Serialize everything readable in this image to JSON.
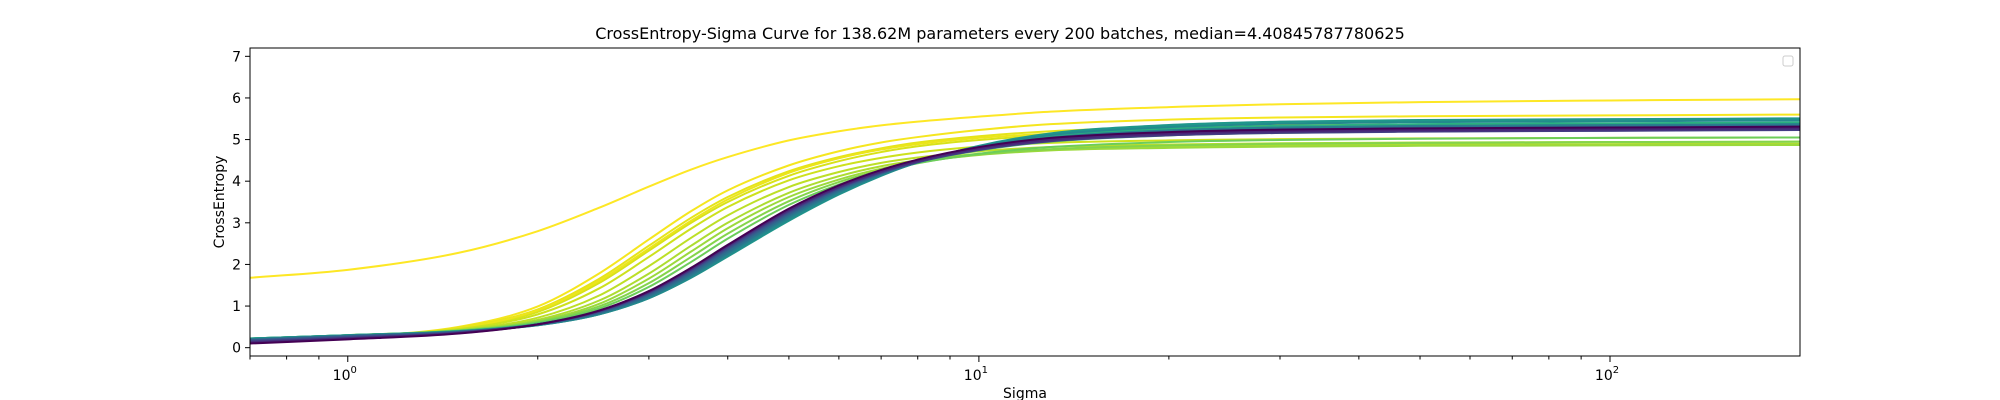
{
  "chart_data": {
    "type": "line",
    "title": "CrossEntropy-Sigma Curve for 138.62M parameters every 200 batches, median=4.40845787780625",
    "xlabel": "Sigma",
    "ylabel": "CrossEntropy",
    "xscale": "log",
    "xlim": [
      0.7,
      200
    ],
    "ylim": [
      -0.2,
      7.2
    ],
    "xticks": [
      {
        "value": 1,
        "base": "10",
        "exp": "0"
      },
      {
        "value": 10,
        "base": "10",
        "exp": "1"
      },
      {
        "value": 100,
        "base": "10",
        "exp": "2"
      }
    ],
    "yticks": [
      {
        "value": 0,
        "label": "0"
      },
      {
        "value": 1,
        "label": "1"
      },
      {
        "value": 2,
        "label": "2"
      },
      {
        "value": 3,
        "label": "3"
      },
      {
        "value": 4,
        "label": "4"
      },
      {
        "value": 5,
        "label": "5"
      },
      {
        "value": 6,
        "label": "6"
      },
      {
        "value": 7,
        "label": "7"
      }
    ],
    "grid": false,
    "legend": "top-right",
    "x": [
      0.7,
      1,
      1.5,
      2,
      2.5,
      3,
      3.5,
      4,
      5,
      6,
      7,
      8,
      10,
      13,
      20,
      30,
      50,
      100,
      200
    ],
    "series": [
      {
        "color": "#fde725",
        "values": [
          1.68,
          1.87,
          2.28,
          2.8,
          3.36,
          3.87,
          4.28,
          4.58,
          4.98,
          5.2,
          5.34,
          5.43,
          5.55,
          5.67,
          5.78,
          5.85,
          5.9,
          5.94,
          5.97
        ]
      },
      {
        "color": "#f5e61f",
        "values": [
          0.15,
          0.26,
          0.5,
          0.99,
          1.78,
          2.6,
          3.28,
          3.78,
          4.38,
          4.72,
          4.93,
          5.06,
          5.23,
          5.37,
          5.48,
          5.53,
          5.56,
          5.58,
          5.6
        ]
      },
      {
        "color": "#e5e419",
        "values": [
          0.16,
          0.26,
          0.48,
          0.92,
          1.65,
          2.45,
          3.12,
          3.62,
          4.24,
          4.58,
          4.79,
          4.93,
          5.08,
          5.2,
          5.3,
          5.34,
          5.36,
          5.38,
          5.4
        ]
      },
      {
        "color": "#d8e219",
        "values": [
          0.17,
          0.27,
          0.46,
          0.86,
          1.55,
          2.33,
          3.0,
          3.5,
          4.13,
          4.48,
          4.7,
          4.84,
          4.99,
          5.1,
          5.18,
          5.22,
          5.24,
          5.26,
          5.28
        ]
      },
      {
        "color": "#ece51b",
        "values": [
          0.15,
          0.25,
          0.47,
          0.9,
          1.6,
          2.38,
          3.05,
          3.56,
          4.2,
          4.55,
          4.76,
          4.89,
          5.04,
          5.14,
          5.22,
          5.26,
          5.28,
          5.3,
          5.32
        ]
      },
      {
        "color": "#cde11d",
        "values": [
          0.18,
          0.28,
          0.45,
          0.8,
          1.42,
          2.18,
          2.86,
          3.38,
          4.02,
          4.36,
          4.56,
          4.69,
          4.83,
          4.92,
          4.98,
          5.01,
          5.03,
          5.04,
          5.05
        ]
      },
      {
        "color": "#bddf26",
        "values": [
          0.19,
          0.28,
          0.43,
          0.72,
          1.25,
          1.96,
          2.64,
          3.18,
          3.86,
          4.22,
          4.44,
          4.57,
          4.72,
          4.82,
          4.88,
          4.91,
          4.93,
          4.94,
          4.95
        ]
      },
      {
        "color": "#addc30",
        "values": [
          0.2,
          0.29,
          0.42,
          0.67,
          1.13,
          1.78,
          2.45,
          3.0,
          3.72,
          4.12,
          4.36,
          4.5,
          4.66,
          4.76,
          4.83,
          4.86,
          4.88,
          4.89,
          4.9
        ]
      },
      {
        "color": "#9bd93c",
        "values": [
          0.2,
          0.29,
          0.42,
          0.64,
          1.05,
          1.66,
          2.31,
          2.87,
          3.62,
          4.04,
          4.3,
          4.46,
          4.63,
          4.74,
          4.8,
          4.83,
          4.85,
          4.86,
          4.87
        ]
      },
      {
        "color": "#84d44b",
        "values": [
          0.21,
          0.3,
          0.41,
          0.62,
          0.99,
          1.55,
          2.18,
          2.74,
          3.52,
          3.98,
          4.26,
          4.44,
          4.64,
          4.77,
          4.86,
          4.9,
          4.92,
          4.94,
          4.95
        ]
      },
      {
        "color": "#6ccd5a",
        "values": [
          0.21,
          0.3,
          0.41,
          0.6,
          0.94,
          1.46,
          2.06,
          2.62,
          3.43,
          3.92,
          4.23,
          4.43,
          4.66,
          4.82,
          4.94,
          4.99,
          5.02,
          5.04,
          5.05
        ]
      },
      {
        "color": "#52c569",
        "values": [
          0.22,
          0.3,
          0.4,
          0.58,
          0.89,
          1.36,
          1.92,
          2.47,
          3.3,
          3.84,
          4.2,
          4.45,
          4.74,
          4.95,
          5.1,
          5.16,
          5.2,
          5.22,
          5.24
        ]
      },
      {
        "color": "#3aba76",
        "values": [
          0.22,
          0.3,
          0.4,
          0.57,
          0.86,
          1.3,
          1.83,
          2.37,
          3.22,
          3.8,
          4.19,
          4.46,
          4.78,
          5.02,
          5.18,
          5.25,
          5.29,
          5.31,
          5.33
        ]
      },
      {
        "color": "#2ab07f",
        "values": [
          0.22,
          0.3,
          0.4,
          0.56,
          0.84,
          1.26,
          1.78,
          2.31,
          3.17,
          3.77,
          4.18,
          4.47,
          4.82,
          5.08,
          5.26,
          5.33,
          5.37,
          5.39,
          5.41
        ]
      },
      {
        "color": "#20a486",
        "values": [
          0.22,
          0.3,
          0.39,
          0.55,
          0.82,
          1.22,
          1.72,
          2.24,
          3.1,
          3.72,
          4.15,
          4.46,
          4.84,
          5.12,
          5.31,
          5.39,
          5.43,
          5.45,
          5.47
        ]
      },
      {
        "color": "#1f978b",
        "values": [
          0.22,
          0.3,
          0.39,
          0.54,
          0.8,
          1.19,
          1.68,
          2.19,
          3.05,
          3.68,
          4.13,
          4.45,
          4.85,
          5.15,
          5.35,
          5.43,
          5.47,
          5.49,
          5.51
        ]
      },
      {
        "color": "#238a8d",
        "values": [
          0.21,
          0.29,
          0.39,
          0.54,
          0.8,
          1.19,
          1.69,
          2.21,
          3.08,
          3.7,
          4.14,
          4.45,
          4.83,
          5.11,
          5.3,
          5.38,
          5.42,
          5.44,
          5.46
        ]
      },
      {
        "color": "#287d8e",
        "values": [
          0.2,
          0.29,
          0.39,
          0.55,
          0.82,
          1.22,
          1.73,
          2.26,
          3.13,
          3.74,
          4.16,
          4.45,
          4.8,
          5.05,
          5.22,
          5.29,
          5.33,
          5.35,
          5.37
        ]
      },
      {
        "color": "#2d708e",
        "values": [
          0.19,
          0.28,
          0.38,
          0.55,
          0.83,
          1.25,
          1.77,
          2.3,
          3.17,
          3.77,
          4.18,
          4.46,
          4.79,
          5.02,
          5.18,
          5.25,
          5.29,
          5.31,
          5.33
        ]
      },
      {
        "color": "#33638d",
        "values": [
          0.18,
          0.27,
          0.38,
          0.56,
          0.85,
          1.28,
          1.81,
          2.35,
          3.21,
          3.8,
          4.19,
          4.46,
          4.77,
          4.99,
          5.14,
          5.21,
          5.24,
          5.26,
          5.28
        ]
      },
      {
        "color": "#39568c",
        "values": [
          0.17,
          0.26,
          0.37,
          0.56,
          0.86,
          1.3,
          1.84,
          2.38,
          3.24,
          3.82,
          4.2,
          4.46,
          4.76,
          4.98,
          5.12,
          5.18,
          5.21,
          5.23,
          5.25
        ]
      },
      {
        "color": "#404688",
        "values": [
          0.15,
          0.24,
          0.36,
          0.56,
          0.87,
          1.32,
          1.87,
          2.41,
          3.27,
          3.84,
          4.21,
          4.46,
          4.75,
          4.96,
          5.1,
          5.16,
          5.19,
          5.21,
          5.23
        ]
      },
      {
        "color": "#453781",
        "values": [
          0.14,
          0.23,
          0.36,
          0.56,
          0.88,
          1.33,
          1.88,
          2.43,
          3.29,
          3.85,
          4.22,
          4.47,
          4.76,
          4.97,
          5.11,
          5.17,
          5.2,
          5.22,
          5.24
        ]
      },
      {
        "color": "#482677",
        "values": [
          0.12,
          0.22,
          0.35,
          0.56,
          0.88,
          1.34,
          1.9,
          2.45,
          3.31,
          3.87,
          4.24,
          4.49,
          4.79,
          5.0,
          5.14,
          5.2,
          5.23,
          5.25,
          5.27
        ]
      },
      {
        "color": "#440154",
        "values": [
          0.1,
          0.2,
          0.34,
          0.56,
          0.89,
          1.36,
          1.92,
          2.47,
          3.34,
          3.9,
          4.27,
          4.52,
          4.82,
          5.04,
          5.18,
          5.24,
          5.27,
          5.29,
          5.31
        ]
      }
    ]
  }
}
